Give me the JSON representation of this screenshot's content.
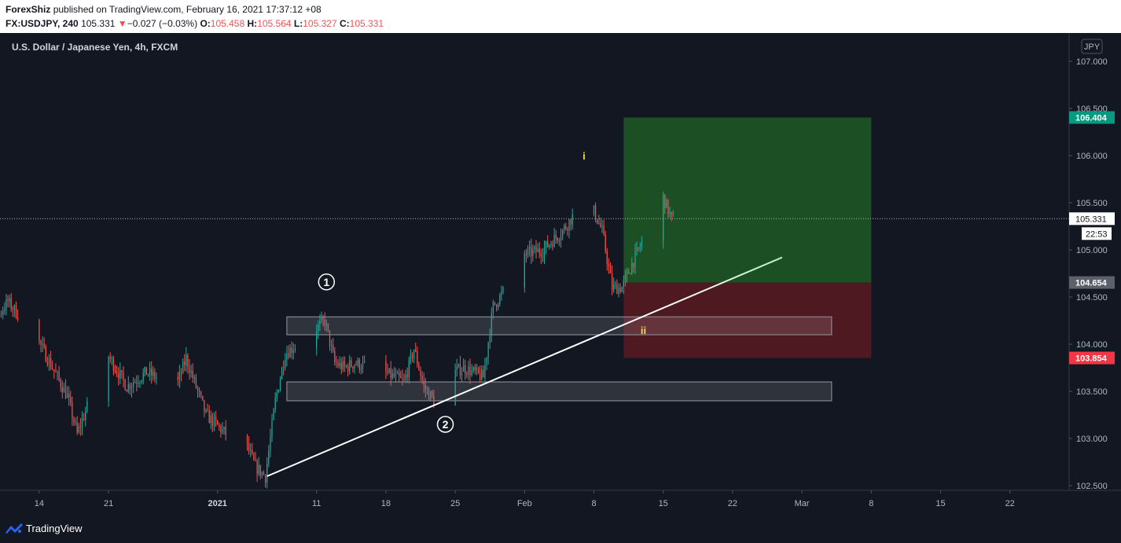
{
  "header": {
    "publisher": "ForexShiz",
    "published_text": "published on TradingView.com, February 16, 2021 17:37:12 +08",
    "symbol_label": "FX:USDJPY, 240",
    "last": "105.331",
    "change_arrow": "▼",
    "change": "−0.027 (−0.03%)",
    "o_label": "O:",
    "o": "105.458",
    "h_label": "H:",
    "h": "105.564",
    "l_label": "L:",
    "l": "105.327",
    "c_label": "C:",
    "c": "105.331"
  },
  "footer": {
    "brand": "TradingView"
  },
  "colors": {
    "up": "#26a69a",
    "down": "#ef5350",
    "target_zone": "#1e5a24",
    "stop_zone": "#5a1a22",
    "target_badge": "#089981",
    "stop_badge": "#f23645"
  },
  "chart_data": {
    "type": "candlestick",
    "title": "U.S. Dollar / Japanese Yen, 4h, FXCM",
    "currency_badge": "JPY",
    "ylim": [
      102.45,
      107.3
    ],
    "y_ticks": [
      "107.000",
      "106.500",
      "106.000",
      "105.500",
      "105.000",
      "104.500",
      "104.000",
      "103.500",
      "103.000",
      "102.500"
    ],
    "x_ticks": [
      "14",
      "21",
      "2021",
      "11",
      "18",
      "25",
      "Feb",
      "8",
      "15",
      "22",
      "Mar",
      "8",
      "15",
      "22"
    ],
    "x_ticks_dates": [
      "2020-12-14",
      "2020-12-21",
      "2021-01-01",
      "2021-01-11",
      "2021-01-18",
      "2021-01-25",
      "2021-02-01",
      "2021-02-08",
      "2021-02-15",
      "2021-02-22",
      "2021-03-01",
      "2021-03-08",
      "2021-03-15",
      "2021-03-22"
    ],
    "path_points": [
      [
        "2020-12-07",
        104.3
      ],
      [
        "2020-12-09",
        104.15
      ],
      [
        "2020-12-11",
        104.45
      ],
      [
        "2020-12-14",
        104.05
      ],
      [
        "2020-12-16",
        103.65
      ],
      [
        "2020-12-17",
        103.45
      ],
      [
        "2020-12-18",
        103.05
      ],
      [
        "2020-12-21",
        103.9
      ],
      [
        "2020-12-23",
        103.55
      ],
      [
        "2020-12-25",
        103.7
      ],
      [
        "2020-12-28",
        103.55
      ],
      [
        "2020-12-29",
        103.85
      ],
      [
        "2020-12-31",
        103.25
      ],
      [
        "2021-01-02",
        103.05
      ],
      [
        "2021-01-04",
        102.95
      ],
      [
        "2021-01-05",
        102.7
      ],
      [
        "2021-01-06",
        102.6
      ],
      [
        "2021-01-07",
        103.4
      ],
      [
        "2021-01-08",
        103.9
      ],
      [
        "2021-01-11",
        104.15
      ],
      [
        "2021-01-12",
        104.25
      ],
      [
        "2021-01-13",
        103.8
      ],
      [
        "2021-01-14",
        103.75
      ],
      [
        "2021-01-15",
        103.8
      ],
      [
        "2021-01-18",
        103.7
      ],
      [
        "2021-01-20",
        103.6
      ],
      [
        "2021-01-21",
        103.95
      ],
      [
        "2021-01-22",
        103.55
      ],
      [
        "2021-01-23",
        103.4
      ],
      [
        "2021-01-25",
        103.7
      ],
      [
        "2021-01-26",
        103.75
      ],
      [
        "2021-01-28",
        103.65
      ],
      [
        "2021-01-29",
        104.4
      ],
      [
        "2021-01-31",
        104.7
      ],
      [
        "2021-02-01",
        104.95
      ],
      [
        "2021-02-03",
        105.0
      ],
      [
        "2021-02-05",
        105.2
      ],
      [
        "2021-02-06",
        105.35
      ],
      [
        "2021-02-07",
        105.5
      ],
      [
        "2021-02-08",
        105.45
      ],
      [
        "2021-02-09",
        105.2
      ],
      [
        "2021-02-10",
        104.6
      ],
      [
        "2021-02-11",
        104.6
      ],
      [
        "2021-02-12",
        104.85
      ],
      [
        "2021-02-14",
        105.3
      ],
      [
        "2021-02-15",
        105.6
      ],
      [
        "2021-02-16",
        105.331
      ]
    ],
    "trendlines": [
      {
        "from": [
          "2021-01-06",
          102.6
        ],
        "to": [
          "2021-02-27",
          104.92
        ],
        "color": "#ffffff"
      }
    ],
    "zones": [
      {
        "from": "2021-01-08",
        "to": "2021-03-04",
        "top": 104.29,
        "bottom": 104.1
      },
      {
        "from": "2021-01-08",
        "to": "2021-03-04",
        "top": 103.6,
        "bottom": 103.4
      }
    ],
    "position": {
      "from": "2021-02-11",
      "to": "2021-03-08",
      "target": 106.404,
      "entry": 104.654,
      "stop": 103.854,
      "target_label": "106.404",
      "entry_label": "104.654",
      "stop_label": "103.854"
    },
    "current_price": {
      "value": 105.331,
      "label": "105.331",
      "countdown": "22:53"
    },
    "wave_labels": [
      {
        "text": "1",
        "date": "2021-01-12",
        "price": 104.66,
        "style": "circle"
      },
      {
        "text": "2",
        "date": "2021-01-24",
        "price": 103.15,
        "style": "circle"
      },
      {
        "text": "i",
        "date": "2021-02-07",
        "price": 106.0,
        "style": "yellow"
      },
      {
        "text": "ii",
        "date": "2021-02-13",
        "price": 104.15,
        "style": "yellow"
      }
    ]
  }
}
